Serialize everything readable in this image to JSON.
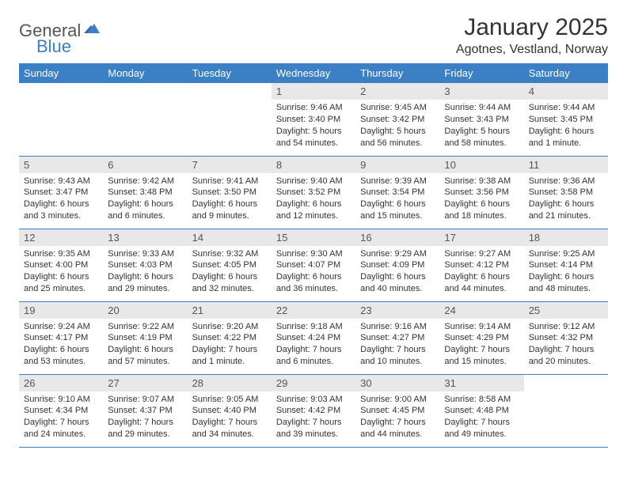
{
  "logo": {
    "text1": "General",
    "text2": "Blue"
  },
  "title": "January 2025",
  "location": "Agotnes, Vestland, Norway",
  "colors": {
    "header_bg": "#3b7fc4",
    "header_text": "#ffffff",
    "daynum_bg": "#e8e8e8",
    "body_text": "#333333",
    "row_border": "#3b7fc4",
    "page_bg": "#ffffff"
  },
  "fonts": {
    "title_pt": 30,
    "location_pt": 16,
    "header_pt": 13,
    "daynum_pt": 13,
    "body_pt": 11
  },
  "weekdays": [
    "Sunday",
    "Monday",
    "Tuesday",
    "Wednesday",
    "Thursday",
    "Friday",
    "Saturday"
  ],
  "grid": {
    "rows": 5,
    "cols": 7,
    "first_weekday_index": 3,
    "days_in_month": 31
  },
  "days": [
    {
      "n": 1,
      "sunrise": "9:46 AM",
      "sunset": "3:40 PM",
      "daylight": "5 hours and 54 minutes."
    },
    {
      "n": 2,
      "sunrise": "9:45 AM",
      "sunset": "3:42 PM",
      "daylight": "5 hours and 56 minutes."
    },
    {
      "n": 3,
      "sunrise": "9:44 AM",
      "sunset": "3:43 PM",
      "daylight": "5 hours and 58 minutes."
    },
    {
      "n": 4,
      "sunrise": "9:44 AM",
      "sunset": "3:45 PM",
      "daylight": "6 hours and 1 minute."
    },
    {
      "n": 5,
      "sunrise": "9:43 AM",
      "sunset": "3:47 PM",
      "daylight": "6 hours and 3 minutes."
    },
    {
      "n": 6,
      "sunrise": "9:42 AM",
      "sunset": "3:48 PM",
      "daylight": "6 hours and 6 minutes."
    },
    {
      "n": 7,
      "sunrise": "9:41 AM",
      "sunset": "3:50 PM",
      "daylight": "6 hours and 9 minutes."
    },
    {
      "n": 8,
      "sunrise": "9:40 AM",
      "sunset": "3:52 PM",
      "daylight": "6 hours and 12 minutes."
    },
    {
      "n": 9,
      "sunrise": "9:39 AM",
      "sunset": "3:54 PM",
      "daylight": "6 hours and 15 minutes."
    },
    {
      "n": 10,
      "sunrise": "9:38 AM",
      "sunset": "3:56 PM",
      "daylight": "6 hours and 18 minutes."
    },
    {
      "n": 11,
      "sunrise": "9:36 AM",
      "sunset": "3:58 PM",
      "daylight": "6 hours and 21 minutes."
    },
    {
      "n": 12,
      "sunrise": "9:35 AM",
      "sunset": "4:00 PM",
      "daylight": "6 hours and 25 minutes."
    },
    {
      "n": 13,
      "sunrise": "9:33 AM",
      "sunset": "4:03 PM",
      "daylight": "6 hours and 29 minutes."
    },
    {
      "n": 14,
      "sunrise": "9:32 AM",
      "sunset": "4:05 PM",
      "daylight": "6 hours and 32 minutes."
    },
    {
      "n": 15,
      "sunrise": "9:30 AM",
      "sunset": "4:07 PM",
      "daylight": "6 hours and 36 minutes."
    },
    {
      "n": 16,
      "sunrise": "9:29 AM",
      "sunset": "4:09 PM",
      "daylight": "6 hours and 40 minutes."
    },
    {
      "n": 17,
      "sunrise": "9:27 AM",
      "sunset": "4:12 PM",
      "daylight": "6 hours and 44 minutes."
    },
    {
      "n": 18,
      "sunrise": "9:25 AM",
      "sunset": "4:14 PM",
      "daylight": "6 hours and 48 minutes."
    },
    {
      "n": 19,
      "sunrise": "9:24 AM",
      "sunset": "4:17 PM",
      "daylight": "6 hours and 53 minutes."
    },
    {
      "n": 20,
      "sunrise": "9:22 AM",
      "sunset": "4:19 PM",
      "daylight": "6 hours and 57 minutes."
    },
    {
      "n": 21,
      "sunrise": "9:20 AM",
      "sunset": "4:22 PM",
      "daylight": "7 hours and 1 minute."
    },
    {
      "n": 22,
      "sunrise": "9:18 AM",
      "sunset": "4:24 PM",
      "daylight": "7 hours and 6 minutes."
    },
    {
      "n": 23,
      "sunrise": "9:16 AM",
      "sunset": "4:27 PM",
      "daylight": "7 hours and 10 minutes."
    },
    {
      "n": 24,
      "sunrise": "9:14 AM",
      "sunset": "4:29 PM",
      "daylight": "7 hours and 15 minutes."
    },
    {
      "n": 25,
      "sunrise": "9:12 AM",
      "sunset": "4:32 PM",
      "daylight": "7 hours and 20 minutes."
    },
    {
      "n": 26,
      "sunrise": "9:10 AM",
      "sunset": "4:34 PM",
      "daylight": "7 hours and 24 minutes."
    },
    {
      "n": 27,
      "sunrise": "9:07 AM",
      "sunset": "4:37 PM",
      "daylight": "7 hours and 29 minutes."
    },
    {
      "n": 28,
      "sunrise": "9:05 AM",
      "sunset": "4:40 PM",
      "daylight": "7 hours and 34 minutes."
    },
    {
      "n": 29,
      "sunrise": "9:03 AM",
      "sunset": "4:42 PM",
      "daylight": "7 hours and 39 minutes."
    },
    {
      "n": 30,
      "sunrise": "9:00 AM",
      "sunset": "4:45 PM",
      "daylight": "7 hours and 44 minutes."
    },
    {
      "n": 31,
      "sunrise": "8:58 AM",
      "sunset": "4:48 PM",
      "daylight": "7 hours and 49 minutes."
    }
  ],
  "labels": {
    "sunrise": "Sunrise:",
    "sunset": "Sunset:",
    "daylight": "Daylight:"
  }
}
